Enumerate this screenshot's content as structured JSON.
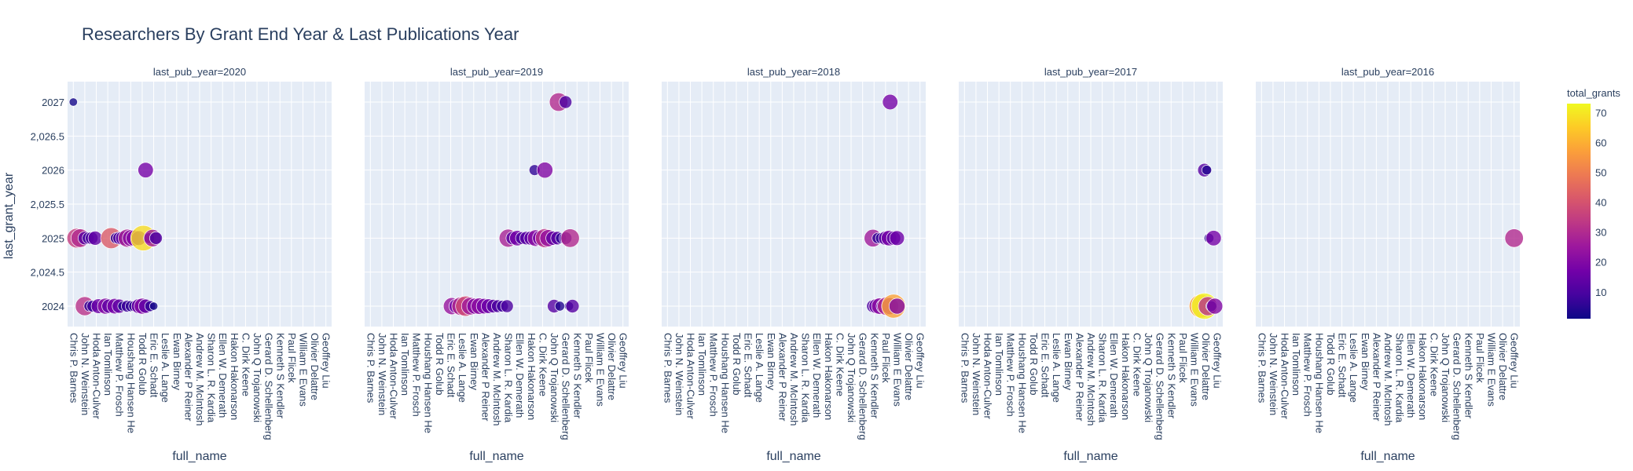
{
  "chart_data": {
    "type": "scatter",
    "title": "Researchers By Grant End Year & Last Publications Year",
    "xlabel": "full_name",
    "ylabel": "last_grant_year",
    "ylim": [
      2023.7,
      2027.3
    ],
    "y_ticks": [
      {
        "v": 2024,
        "label": "2024"
      },
      {
        "v": 2024.5,
        "label": "2,024.5"
      },
      {
        "v": 2025,
        "label": "2025"
      },
      {
        "v": 2025.5,
        "label": "2,025.5"
      },
      {
        "v": 2026,
        "label": "2026"
      },
      {
        "v": 2026.5,
        "label": "2,026.5"
      },
      {
        "v": 2027,
        "label": "2027"
      }
    ],
    "categories": [
      "Chris P. Barnes",
      "John N. Weinstein",
      "Hoda Anton-Culver",
      "Ian Tomlinson",
      "Matthew P. Frosch",
      "Houshang Hansen He",
      "Todd R Golub",
      "Eric E. Schadt",
      "Leslie A. Lange",
      "Ewan Birney",
      "Alexander P Reiner",
      "Andrew M. McIntosh",
      "Sharon L. R. Kardia",
      "Ellen W. Demerath",
      "Hakon Hakonarson",
      "C. Dirk Keene",
      "John Q Trojanowski",
      "Gerard D. Schellenberg",
      "Kenneth S Kendler",
      "Paul Flicek",
      "William E Evans",
      "Olivier Delattre",
      "Geoffrey Liu"
    ],
    "facet_variable": "last_pub_year",
    "facets": [
      {
        "label": "last_pub_year=2020",
        "points": [
          {
            "x": 0.0,
            "y": 2027,
            "grants": 2
          },
          {
            "x": 0.3,
            "y": 2025,
            "grants": 35
          },
          {
            "x": 0.6,
            "y": 2025,
            "grants": 30
          },
          {
            "x": 1.0,
            "y": 2025,
            "grants": 12
          },
          {
            "x": 1.3,
            "y": 2025,
            "grants": 8
          },
          {
            "x": 1.6,
            "y": 2025,
            "grants": 10
          },
          {
            "x": 1.9,
            "y": 2025,
            "grants": 14
          },
          {
            "x": 3.3,
            "y": 2025,
            "grants": 42
          },
          {
            "x": 3.7,
            "y": 2025,
            "grants": 6
          },
          {
            "x": 4.0,
            "y": 2025,
            "grants": 10
          },
          {
            "x": 4.3,
            "y": 2025,
            "grants": 14
          },
          {
            "x": 4.7,
            "y": 2025,
            "grants": 28
          },
          {
            "x": 5.0,
            "y": 2025,
            "grants": 22
          },
          {
            "x": 5.3,
            "y": 2025,
            "grants": 20
          },
          {
            "x": 5.7,
            "y": 2025,
            "grants": 16
          },
          {
            "x": 6.1,
            "y": 2025,
            "grants": 68
          },
          {
            "x": 6.6,
            "y": 2025,
            "grants": 6
          },
          {
            "x": 6.9,
            "y": 2025,
            "grants": 25
          },
          {
            "x": 7.2,
            "y": 2025,
            "grants": 10
          },
          {
            "x": 6.3,
            "y": 2026,
            "grants": 18
          },
          {
            "x": 1.0,
            "y": 2024,
            "grants": 32
          },
          {
            "x": 1.4,
            "y": 2024,
            "grants": 6
          },
          {
            "x": 1.7,
            "y": 2024,
            "grants": 8
          },
          {
            "x": 2.2,
            "y": 2024,
            "grants": 16
          },
          {
            "x": 2.8,
            "y": 2024,
            "grants": 20
          },
          {
            "x": 3.1,
            "y": 2024,
            "grants": 14
          },
          {
            "x": 3.6,
            "y": 2024,
            "grants": 18
          },
          {
            "x": 4.0,
            "y": 2024,
            "grants": 14
          },
          {
            "x": 4.3,
            "y": 2024,
            "grants": 4
          },
          {
            "x": 4.7,
            "y": 2024,
            "grants": 8
          },
          {
            "x": 5.0,
            "y": 2024,
            "grants": 6
          },
          {
            "x": 5.3,
            "y": 2024,
            "grants": 6
          },
          {
            "x": 5.7,
            "y": 2024,
            "grants": 16
          },
          {
            "x": 6.0,
            "y": 2024,
            "grants": 20
          },
          {
            "x": 6.3,
            "y": 2024,
            "grants": 14
          },
          {
            "x": 6.7,
            "y": 2024,
            "grants": 6
          },
          {
            "x": 7.0,
            "y": 2024,
            "grants": 2
          }
        ]
      },
      {
        "label": "last_pub_year=2019",
        "points": [
          {
            "x": 16.4,
            "y": 2027,
            "grants": 30
          },
          {
            "x": 17.0,
            "y": 2027,
            "grants": 10
          },
          {
            "x": 14.3,
            "y": 2026,
            "grants": 6
          },
          {
            "x": 15.2,
            "y": 2026,
            "grants": 20
          },
          {
            "x": 12.0,
            "y": 2025,
            "grants": 28
          },
          {
            "x": 12.4,
            "y": 2025,
            "grants": 12
          },
          {
            "x": 12.8,
            "y": 2025,
            "grants": 18
          },
          {
            "x": 13.2,
            "y": 2025,
            "grants": 10
          },
          {
            "x": 13.6,
            "y": 2025,
            "grants": 12
          },
          {
            "x": 14.0,
            "y": 2025,
            "grants": 14
          },
          {
            "x": 14.4,
            "y": 2025,
            "grants": 22
          },
          {
            "x": 14.8,
            "y": 2025,
            "grants": 18
          },
          {
            "x": 15.2,
            "y": 2025,
            "grants": 32
          },
          {
            "x": 15.5,
            "y": 2025,
            "grants": 24
          },
          {
            "x": 15.9,
            "y": 2025,
            "grants": 14
          },
          {
            "x": 16.3,
            "y": 2025,
            "grants": 12
          },
          {
            "x": 16.6,
            "y": 2025,
            "grants": 6
          },
          {
            "x": 17.0,
            "y": 2025,
            "grants": 10
          },
          {
            "x": 17.4,
            "y": 2025,
            "grants": 30
          },
          {
            "x": 7.1,
            "y": 2024,
            "grants": 24
          },
          {
            "x": 7.5,
            "y": 2024,
            "grants": 16
          },
          {
            "x": 7.9,
            "y": 2024,
            "grants": 30
          },
          {
            "x": 8.3,
            "y": 2024,
            "grants": 38
          },
          {
            "x": 8.7,
            "y": 2024,
            "grants": 26
          },
          {
            "x": 9.1,
            "y": 2024,
            "grants": 20
          },
          {
            "x": 9.5,
            "y": 2024,
            "grants": 22
          },
          {
            "x": 9.9,
            "y": 2024,
            "grants": 18
          },
          {
            "x": 10.3,
            "y": 2024,
            "grants": 16
          },
          {
            "x": 10.7,
            "y": 2024,
            "grants": 12
          },
          {
            "x": 11.1,
            "y": 2024,
            "grants": 10
          },
          {
            "x": 11.5,
            "y": 2024,
            "grants": 8
          },
          {
            "x": 11.9,
            "y": 2024,
            "grants": 10
          },
          {
            "x": 16.0,
            "y": 2024,
            "grants": 12
          },
          {
            "x": 16.5,
            "y": 2024,
            "grants": 4
          },
          {
            "x": 17.3,
            "y": 2024,
            "grants": 3
          },
          {
            "x": 17.6,
            "y": 2024,
            "grants": 12
          }
        ]
      },
      {
        "label": "last_pub_year=2018",
        "points": [
          {
            "x": 19.4,
            "y": 2027,
            "grants": 18
          },
          {
            "x": 17.9,
            "y": 2025,
            "grants": 26
          },
          {
            "x": 18.3,
            "y": 2025,
            "grants": 6
          },
          {
            "x": 18.6,
            "y": 2025,
            "grants": 6
          },
          {
            "x": 19.0,
            "y": 2025,
            "grants": 14
          },
          {
            "x": 19.3,
            "y": 2025,
            "grants": 18
          },
          {
            "x": 19.7,
            "y": 2025,
            "grants": 14
          },
          {
            "x": 20.0,
            "y": 2025,
            "grants": 16
          },
          {
            "x": 17.9,
            "y": 2024,
            "grants": 10
          },
          {
            "x": 18.2,
            "y": 2024,
            "grants": 16
          },
          {
            "x": 18.5,
            "y": 2024,
            "grants": 22
          },
          {
            "x": 18.8,
            "y": 2024,
            "grants": 14
          },
          {
            "x": 19.1,
            "y": 2024,
            "grants": 30
          },
          {
            "x": 19.4,
            "y": 2024,
            "grants": 24
          },
          {
            "x": 19.7,
            "y": 2024,
            "grants": 58
          },
          {
            "x": 20.0,
            "y": 2024,
            "grants": 20
          }
        ]
      },
      {
        "label": "last_pub_year=2017",
        "points": [
          {
            "x": 20.9,
            "y": 2026,
            "grants": 12
          },
          {
            "x": 21.1,
            "y": 2026,
            "grants": 4
          },
          {
            "x": 21.3,
            "y": 2025,
            "grants": 4
          },
          {
            "x": 21.7,
            "y": 2025,
            "grants": 18
          },
          {
            "x": 20.6,
            "y": 2024,
            "grants": 56
          },
          {
            "x": 20.9,
            "y": 2024,
            "grants": 72
          },
          {
            "x": 21.2,
            "y": 2024,
            "grants": 32
          },
          {
            "x": 21.5,
            "y": 2024,
            "grants": 6
          },
          {
            "x": 21.8,
            "y": 2024,
            "grants": 20
          }
        ]
      },
      {
        "label": "last_pub_year=2016",
        "points": [
          {
            "x": 22.0,
            "y": 2025,
            "grants": 30
          }
        ]
      }
    ],
    "colorbar": {
      "title": "total_grants",
      "min": 1,
      "max": 73,
      "ticks": [
        10,
        20,
        30,
        40,
        50,
        60,
        70
      ],
      "colorscale": [
        "#0d0887",
        "#46039f",
        "#7201a8",
        "#9c179e",
        "#bd3786",
        "#d8576b",
        "#ed7953",
        "#fb9f3a",
        "#fdca26",
        "#f0f921"
      ]
    },
    "plot_background": "#e5ecf6",
    "gridline_color": "#ffffff",
    "grid": true
  }
}
